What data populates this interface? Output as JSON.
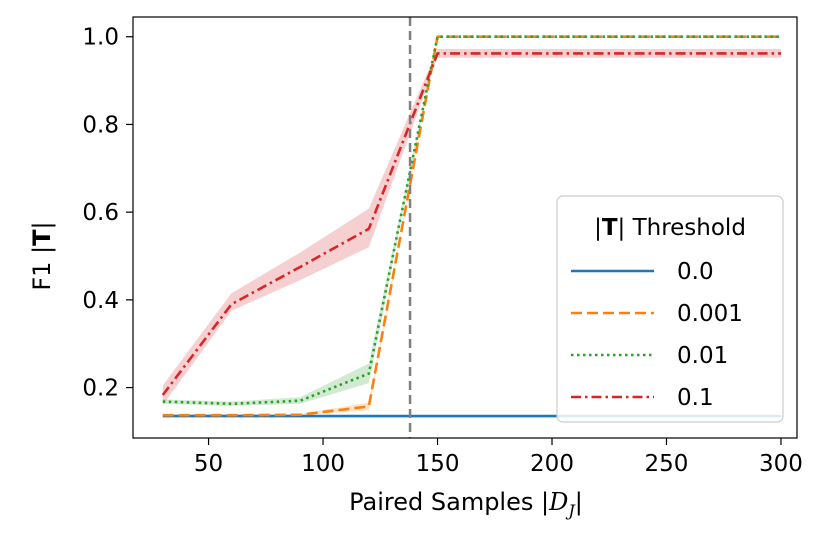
{
  "chart_data": {
    "type": "line",
    "title": "",
    "xlabel": "Paired Samples |",
    "xlabel_math_symbol": "D",
    "xlabel_math_subscript": "J",
    "xlabel_close": "|",
    "ylabel_prefix": "F1 |",
    "ylabel_bold": "T",
    "ylabel_suffix": "|",
    "xlim": [
      17,
      307
    ],
    "ylim": [
      0.085,
      1.045
    ],
    "xticks": [
      50,
      100,
      150,
      200,
      250,
      300
    ],
    "yticks": [
      0.2,
      0.4,
      0.6,
      0.8,
      1.0
    ],
    "xtick_labels": [
      "50",
      "100",
      "150",
      "200",
      "250",
      "300"
    ],
    "ytick_labels": [
      "0.2",
      "0.4",
      "0.6",
      "0.8",
      "1.0"
    ],
    "vline_x": 138,
    "x": [
      30,
      60,
      90,
      120,
      150,
      180,
      210,
      240,
      270,
      300
    ],
    "legend": {
      "title_prefix": "|",
      "title_bold": "T",
      "title_suffix": "| Threshold",
      "position": "center-right"
    },
    "series": [
      {
        "name": "0.0",
        "color": "#1f77b4",
        "style": "solid",
        "values": [
          0.135,
          0.135,
          0.135,
          0.135,
          0.135,
          0.135,
          0.135,
          0.135,
          0.135,
          0.135
        ],
        "lower": [
          0.135,
          0.135,
          0.135,
          0.135,
          0.135,
          0.135,
          0.135,
          0.135,
          0.135,
          0.135
        ],
        "upper": [
          0.135,
          0.135,
          0.135,
          0.135,
          0.135,
          0.135,
          0.135,
          0.135,
          0.135,
          0.135
        ]
      },
      {
        "name": "0.001",
        "color": "#ff7f0e",
        "style": "dashed",
        "values": [
          0.137,
          0.137,
          0.138,
          0.157,
          1.0,
          1.0,
          1.0,
          1.0,
          1.0,
          1.0
        ],
        "lower": [
          0.136,
          0.136,
          0.137,
          0.148,
          1.0,
          1.0,
          1.0,
          1.0,
          1.0,
          1.0
        ],
        "upper": [
          0.139,
          0.139,
          0.14,
          0.166,
          1.0,
          1.0,
          1.0,
          1.0,
          1.0,
          1.0
        ]
      },
      {
        "name": "0.01",
        "color": "#2ca02c",
        "style": "dotted",
        "values": [
          0.168,
          0.163,
          0.17,
          0.232,
          1.0,
          1.0,
          1.0,
          1.0,
          1.0,
          1.0
        ],
        "lower": [
          0.163,
          0.158,
          0.163,
          0.21,
          1.0,
          1.0,
          1.0,
          1.0,
          1.0,
          1.0
        ],
        "upper": [
          0.173,
          0.168,
          0.178,
          0.255,
          1.0,
          1.0,
          1.0,
          1.0,
          1.0,
          1.0
        ]
      },
      {
        "name": "0.1",
        "color": "#d62728",
        "style": "dashdot",
        "values": [
          0.183,
          0.39,
          0.475,
          0.562,
          0.962,
          0.962,
          0.962,
          0.962,
          0.962,
          0.962
        ],
        "lower": [
          0.16,
          0.375,
          0.445,
          0.52,
          0.952,
          0.952,
          0.952,
          0.952,
          0.952,
          0.952
        ],
        "upper": [
          0.205,
          0.415,
          0.508,
          0.608,
          0.972,
          0.972,
          0.972,
          0.972,
          0.972,
          0.972
        ]
      }
    ]
  }
}
